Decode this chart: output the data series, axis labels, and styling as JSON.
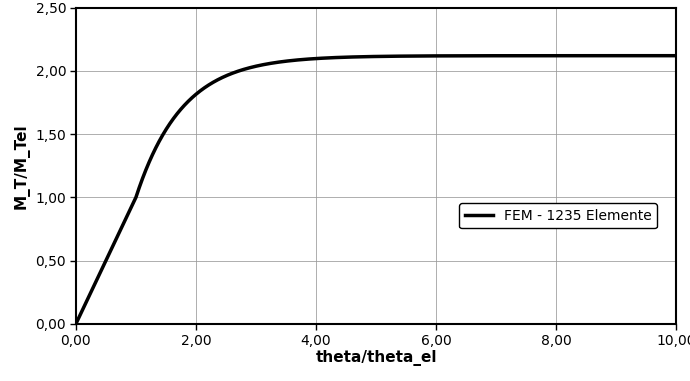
{
  "xlabel": "theta/theta_el",
  "ylabel": "M_T/M_Tel",
  "xlim": [
    0,
    10
  ],
  "ylim": [
    0,
    2.5
  ],
  "xticks": [
    0.0,
    2.0,
    4.0,
    6.0,
    8.0,
    10.0
  ],
  "yticks": [
    0.0,
    0.5,
    1.0,
    1.5,
    2.0,
    2.5
  ],
  "legend_label": "FEM - 1235 Elemente",
  "line_color": "#000000",
  "line_width": 2.5,
  "asymptote": 2.12,
  "background_color": "#ffffff",
  "grid_color": "#999999",
  "curve_k": 1.3,
  "curve_breakpoint": 1.0,
  "figsize": [
    6.9,
    3.81
  ],
  "dpi": 100
}
